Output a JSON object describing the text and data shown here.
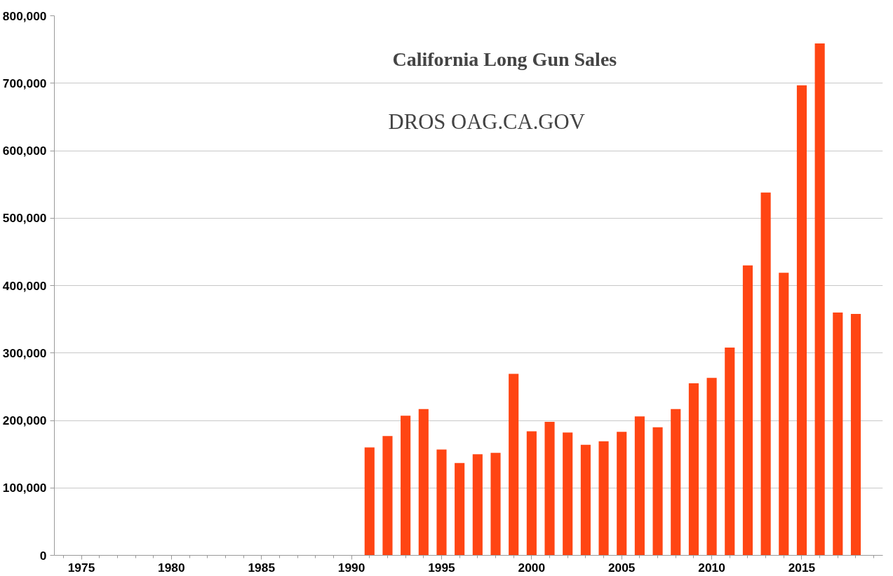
{
  "chart_data": {
    "type": "bar",
    "title": "California Long Gun Sales",
    "subtitle": "DROS OAG.CA.GOV",
    "x": [
      1991,
      1992,
      1993,
      1994,
      1995,
      1996,
      1997,
      1998,
      1999,
      2000,
      2001,
      2002,
      2003,
      2004,
      2005,
      2006,
      2007,
      2008,
      2009,
      2010,
      2011,
      2012,
      2013,
      2014,
      2015,
      2016,
      2017,
      2018
    ],
    "values": [
      160000,
      177000,
      207000,
      217000,
      157000,
      137000,
      150000,
      152000,
      269000,
      184000,
      198000,
      182000,
      164000,
      169000,
      183000,
      206000,
      190000,
      217000,
      255000,
      263000,
      308000,
      430000,
      538000,
      419000,
      697000,
      759000,
      360000,
      358000
    ],
    "color": "#ff4513",
    "xlim": [
      1973.5,
      2019.5
    ],
    "xticks": [
      1975,
      1980,
      1985,
      1990,
      1995,
      2000,
      2005,
      2010,
      2015
    ],
    "ylim": [
      0,
      800000
    ],
    "yticks": [
      {
        "value": 0,
        "label": "0"
      },
      {
        "value": 100000,
        "label": "100,000"
      },
      {
        "value": 200000,
        "label": "200,000"
      },
      {
        "value": 300000,
        "label": "300,000"
      },
      {
        "value": 400000,
        "label": "400,000"
      },
      {
        "value": 500000,
        "label": "500,000"
      },
      {
        "value": 600000,
        "label": "600,000"
      },
      {
        "value": 700000,
        "label": "700,000"
      },
      {
        "value": 800000,
        "label": "800,000"
      }
    ],
    "grid": "y"
  }
}
